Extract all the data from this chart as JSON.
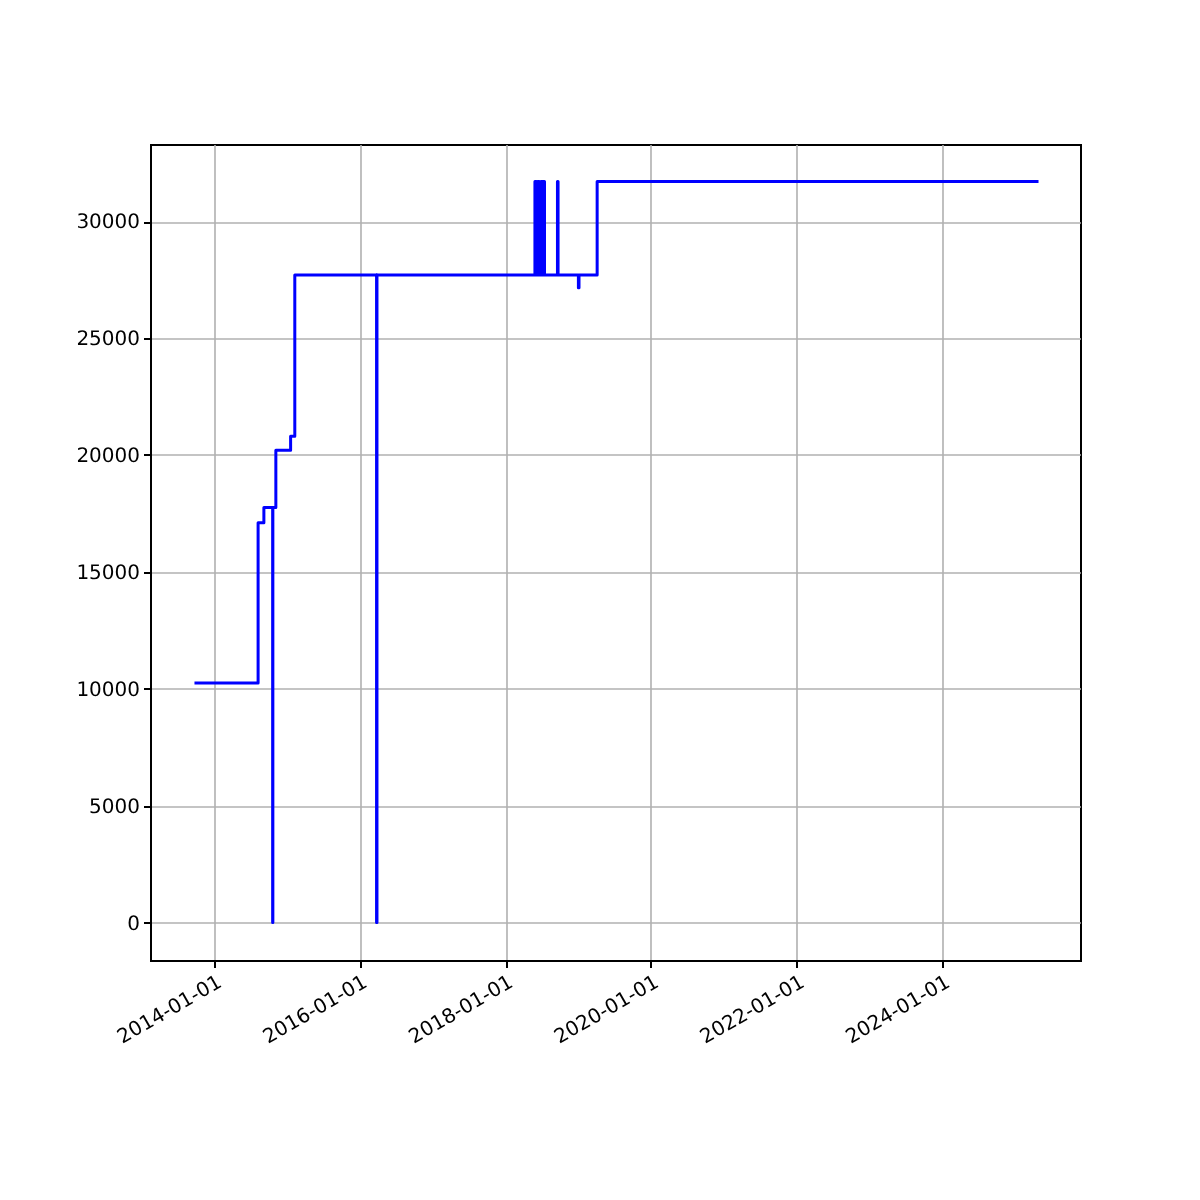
{
  "chart_data": {
    "type": "step",
    "grid": true,
    "xlim": [
      "2013-02-14",
      "2025-11-21"
    ],
    "xticks": [
      {
        "value": "2014-01-01",
        "label": "2014-01-01"
      },
      {
        "value": "2016-01-01",
        "label": "2016-01-01"
      },
      {
        "value": "2018-01-01",
        "label": "2018-01-01"
      },
      {
        "value": "2020-01-01",
        "label": "2020-01-01"
      },
      {
        "value": "2022-01-01",
        "label": "2022-01-01"
      },
      {
        "value": "2024-01-01",
        "label": "2024-01-01"
      }
    ],
    "ylim": [
      -1600,
      33300
    ],
    "yticks": [
      0,
      5000,
      10000,
      15000,
      20000,
      25000,
      30000
    ],
    "series": [
      {
        "color": "#0000ff",
        "x": [
          "2013-09-25",
          "2014-08-10",
          "2014-09-08",
          "2014-10-22",
          "2014-10-23",
          "2014-11-07",
          "2015-01-20",
          "2015-02-10",
          "2016-03-26",
          "2016-03-28",
          "2018-05-29",
          "2018-06-05",
          "2018-06-12",
          "2018-06-20",
          "2018-06-28",
          "2018-07-06",
          "2018-07-10",
          "2018-07-16",
          "2018-09-19",
          "2018-09-22",
          "2019-01-02",
          "2019-01-05",
          "2019-04-06",
          "2025-04-27"
        ],
        "values": [
          10250,
          17100,
          17750,
          0,
          17750,
          20200,
          20800,
          27700,
          0,
          27700,
          31700,
          27700,
          31700,
          27700,
          31700,
          27700,
          31700,
          27700,
          31700,
          27700,
          27150,
          27700,
          31700,
          31700
        ]
      }
    ]
  }
}
